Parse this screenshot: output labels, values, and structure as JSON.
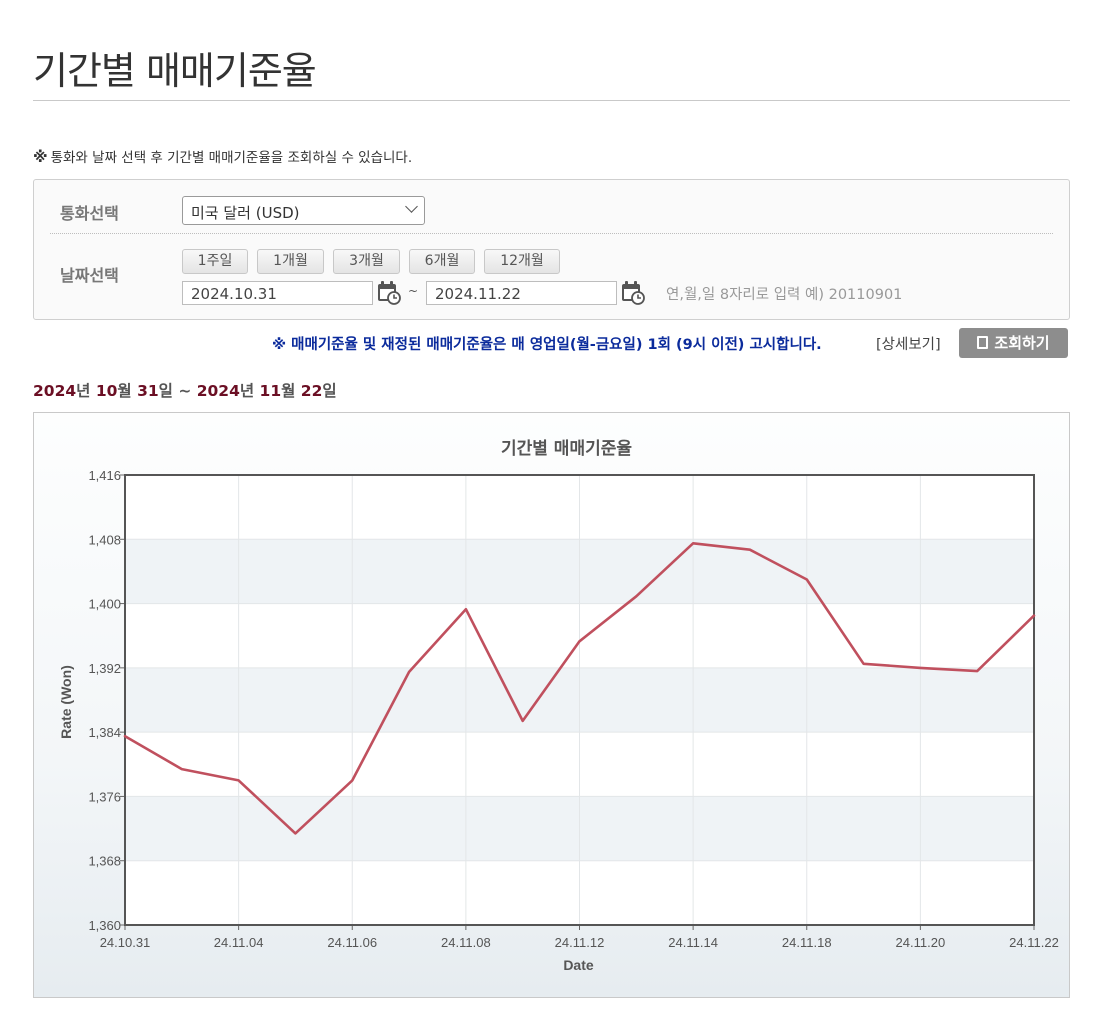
{
  "page_title": "기간별 매매기준율",
  "notice": {
    "mark": "※",
    "text": "통화와 날짜 선택 후 기간별 매매기준율을 조회하실 수 있습니다."
  },
  "search": {
    "currency_label": "통화선택",
    "currency_value": "미국 달러 (USD)",
    "date_label": "날짜선택",
    "period_buttons": [
      "1주일",
      "1개월",
      "3개월",
      "6개월",
      "12개월"
    ],
    "start_date": "2024.10.31",
    "end_date": "2024.11.22",
    "separator": "~",
    "date_hint": "연,월,일 8자리로 입력 예) 20110901"
  },
  "info_line": "※ 매매기준율 및 재정된 매매기준율은 매 영업일(월-금요일) 1회 (9시 이전) 고시합니다.",
  "detail_link": "[상세보기]",
  "query_button": "조회하기",
  "range": {
    "y1": "2024",
    "m1": "10",
    "d1": "31",
    "y2": "2024",
    "m2": "11",
    "d2": "22",
    "year_unit": "년",
    "month_unit": "월",
    "day_unit": "일",
    "sep": "~"
  },
  "colors": {
    "line": "#c0505e",
    "title_text": "#555555",
    "range_number": "#6b0f24",
    "info_text": "#0b2b9c"
  },
  "chart_data": {
    "type": "line",
    "title": "기간별 매매기준율",
    "xlabel": "Date",
    "ylabel": "Rate (Won)",
    "ylim": [
      1360,
      1416
    ],
    "yticks": [
      1360,
      1368,
      1376,
      1384,
      1392,
      1400,
      1408,
      1416
    ],
    "ytick_labels": [
      "1,360",
      "1,368",
      "1,376",
      "1,384",
      "1,392",
      "1,400",
      "1,408",
      "1,416"
    ],
    "x": [
      "24.10.31",
      "24.11.01",
      "24.11.04",
      "24.11.05",
      "24.11.06",
      "24.11.07",
      "24.11.08",
      "24.11.11",
      "24.11.12",
      "24.11.13",
      "24.11.14",
      "24.11.15",
      "24.11.18",
      "24.11.19",
      "24.11.20",
      "24.11.21",
      "24.11.22"
    ],
    "xtick_labels": [
      "24.10.31",
      "24.11.04",
      "24.11.06",
      "24.11.08",
      "24.11.12",
      "24.11.14",
      "24.11.18",
      "24.11.20",
      "24.11.22"
    ],
    "grid": true,
    "series": [
      {
        "values": [
          1383.5,
          1379.4,
          1378.0,
          1371.4,
          1378.0,
          1391.5,
          1399.3,
          1385.4,
          1395.3,
          1400.9,
          1407.5,
          1406.7,
          1403.0,
          1392.5,
          1392.0,
          1391.6,
          1398.5
        ]
      }
    ]
  }
}
